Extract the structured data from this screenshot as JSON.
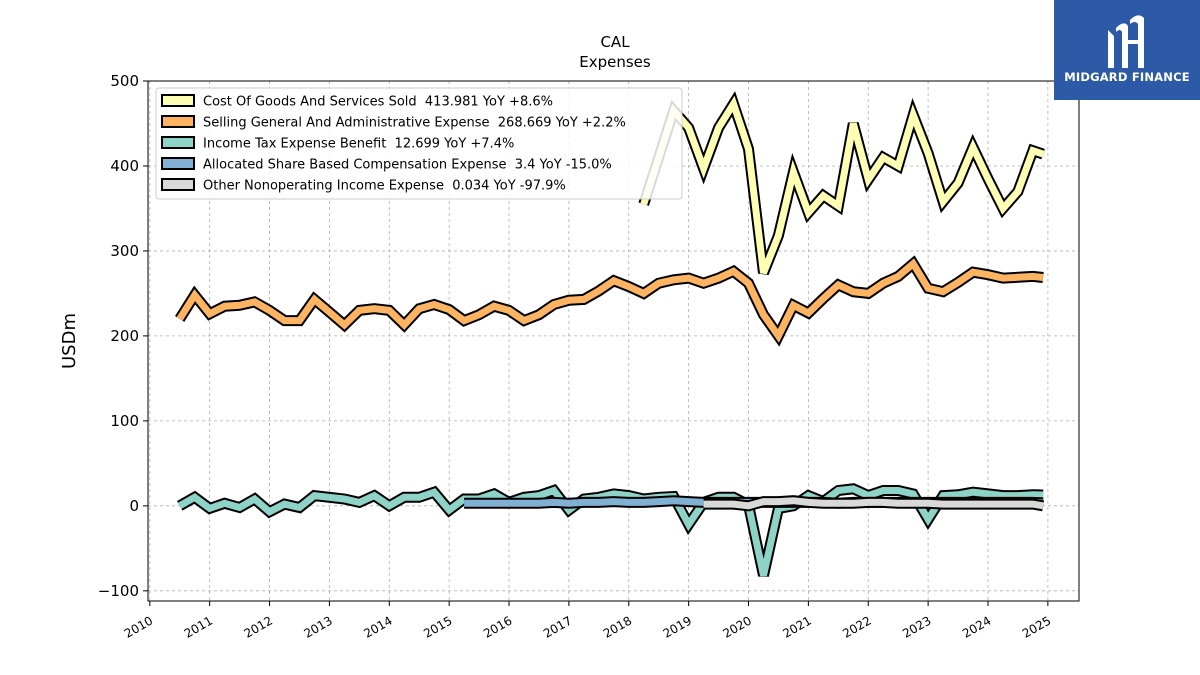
{
  "chart_data": {
    "type": "line",
    "title": "CAL",
    "subtitle": "Expenses",
    "ylabel": "USDm",
    "xlabel": "",
    "ylim": [
      -112,
      500
    ],
    "xlim": [
      2009.97,
      2025.52
    ],
    "yticks": [
      -100,
      0,
      100,
      200,
      300,
      400,
      500
    ],
    "ytick_labels": [
      "−100",
      "0",
      "100",
      "200",
      "300",
      "400",
      "500"
    ],
    "xticks": [
      2010,
      2011,
      2012,
      2013,
      2014,
      2015,
      2016,
      2017,
      2018,
      2019,
      2020,
      2021,
      2022,
      2023,
      2024,
      2025
    ],
    "grid": true,
    "legend_position": "top-left",
    "series": [
      {
        "name": "Cost Of Goods And Services Sold",
        "legend": "Cost Of Goods And Services Sold  413.981 YoY +8.6%",
        "color": "#ffffb3",
        "x": [
          2018.25,
          2018.5,
          2018.75,
          2019.0,
          2019.25,
          2019.5,
          2019.75,
          2020.0,
          2020.25,
          2020.5,
          2020.75,
          2021.0,
          2021.25,
          2021.5,
          2021.75,
          2022.0,
          2022.25,
          2022.5,
          2022.75,
          2023.0,
          2023.25,
          2023.5,
          2023.75,
          2024.0,
          2024.25,
          2024.5,
          2024.75,
          2024.92
        ],
        "values": [
          355,
          410,
          465,
          445,
          397,
          445,
          473,
          420,
          274,
          318,
          393,
          345,
          365,
          353,
          450,
          384,
          410,
          400,
          460,
          415,
          358,
          380,
          422,
          385,
          350,
          370,
          418,
          414
        ]
      },
      {
        "name": "Selling General And Administrative Expense",
        "legend": "Selling General And Administrative Expense  268.669 YoY +2.2%",
        "color": "#fdb462",
        "x": [
          2010.5,
          2010.75,
          2011.0,
          2011.25,
          2011.5,
          2011.75,
          2012.0,
          2012.25,
          2012.5,
          2012.75,
          2013.0,
          2013.25,
          2013.5,
          2013.75,
          2014.0,
          2014.25,
          2014.5,
          2014.75,
          2015.0,
          2015.25,
          2015.5,
          2015.75,
          2016.0,
          2016.25,
          2016.5,
          2016.75,
          2017.0,
          2017.25,
          2017.5,
          2017.75,
          2018.0,
          2018.25,
          2018.5,
          2018.75,
          2019.0,
          2019.25,
          2019.5,
          2019.75,
          2020.0,
          2020.25,
          2020.5,
          2020.75,
          2021.0,
          2021.25,
          2021.5,
          2021.75,
          2022.0,
          2022.25,
          2022.5,
          2022.75,
          2023.0,
          2023.25,
          2023.5,
          2023.75,
          2024.0,
          2024.25,
          2024.5,
          2024.75,
          2024.92
        ],
        "values": [
          220,
          248,
          226,
          235,
          236,
          240,
          230,
          218,
          218,
          243,
          228,
          213,
          230,
          232,
          230,
          213,
          232,
          237,
          231,
          218,
          225,
          235,
          230,
          218,
          225,
          237,
          242,
          243,
          253,
          265,
          258,
          250,
          262,
          266,
          268,
          262,
          268,
          276,
          262,
          225,
          200,
          236,
          227,
          244,
          260,
          252,
          250,
          262,
          270,
          285,
          256,
          252,
          263,
          275,
          272,
          268,
          269,
          270,
          268.7
        ]
      },
      {
        "name": "Income Tax Expense Benefit",
        "legend": "Income Tax Expense Benefit  12.699 YoY +7.4%",
        "color": "#8dd3c7",
        "x": [
          2010.5,
          2010.75,
          2011.0,
          2011.25,
          2011.5,
          2011.75,
          2012.0,
          2012.25,
          2012.5,
          2012.75,
          2013.0,
          2013.25,
          2013.5,
          2013.75,
          2014.0,
          2014.25,
          2014.5,
          2014.75,
          2015.0,
          2015.25,
          2015.5,
          2015.75,
          2016.0,
          2016.25,
          2016.5,
          2016.75,
          2017.0,
          2017.25,
          2017.5,
          2017.75,
          2018.0,
          2018.25,
          2018.5,
          2018.75,
          2019.0,
          2019.25,
          2019.5,
          2019.75,
          2020.0,
          2020.25,
          2020.5,
          2020.75,
          2021.0,
          2021.25,
          2021.5,
          2021.75,
          2022.0,
          2022.25,
          2022.5,
          2022.75,
          2023.0,
          2023.25,
          2023.5,
          2023.75,
          2024.0,
          2024.25,
          2024.5,
          2024.75,
          2024.92
        ],
        "values": [
          0,
          10,
          -3,
          3,
          -2,
          8,
          -7,
          2,
          -2,
          12,
          10,
          8,
          4,
          12,
          0,
          10,
          10,
          16,
          -5,
          8,
          8,
          14,
          4,
          10,
          12,
          18,
          -5,
          8,
          10,
          14,
          12,
          8,
          10,
          11,
          -22,
          4,
          10,
          10,
          1,
          -82,
          -3,
          0,
          12,
          5,
          18,
          20,
          12,
          18,
          18,
          14,
          -16,
          12,
          13,
          16,
          14,
          12,
          12,
          13,
          12.7
        ]
      },
      {
        "name": "Allocated Share Based Compensation Expense",
        "legend": "Allocated Share Based Compensation Expense  3.4 YoY -15.0%",
        "color": "#80b1d3",
        "x": [
          2015.25,
          2015.5,
          2015.75,
          2016.0,
          2016.25,
          2016.5,
          2016.75,
          2017.0,
          2017.25,
          2017.5,
          2017.75,
          2018.0,
          2018.25,
          2018.5,
          2018.75,
          2019.0,
          2019.25,
          2019.5,
          2019.75,
          2020.0,
          2020.25,
          2020.5,
          2020.75,
          2021.0,
          2021.25,
          2021.5,
          2021.75,
          2022.0,
          2022.25,
          2022.5,
          2022.75,
          2023.0,
          2023.25,
          2023.5,
          2023.75,
          2024.0,
          2024.25,
          2024.5,
          2024.75,
          2024.92
        ],
        "values": [
          3,
          3,
          3,
          3,
          3,
          3,
          4,
          3,
          4,
          4,
          5,
          4,
          4,
          5,
          6,
          5,
          4,
          4,
          4,
          4,
          4,
          4,
          4,
          4,
          4,
          3,
          4,
          4,
          4,
          4,
          4,
          4,
          4,
          4,
          4,
          4,
          4,
          4,
          4,
          3.4
        ]
      },
      {
        "name": "Other Nonoperating Income Expense",
        "legend": "Other Nonoperating Income Expense  0.034 YoY -97.9%",
        "color": "#d9d9d9",
        "x": [
          2019.25,
          2019.5,
          2019.75,
          2020.0,
          2020.25,
          2020.5,
          2020.75,
          2021.0,
          2021.25,
          2021.5,
          2021.75,
          2022.0,
          2022.25,
          2022.5,
          2022.75,
          2023.0,
          2023.25,
          2023.5,
          2023.75,
          2024.0,
          2024.25,
          2024.5,
          2024.75,
          2024.92
        ],
        "values": [
          2,
          2,
          2,
          0,
          5,
          5,
          6,
          4,
          3,
          3,
          3,
          4,
          4,
          3,
          3,
          3,
          2,
          2,
          2,
          2,
          2,
          2,
          2,
          0.034
        ]
      }
    ]
  },
  "logo": {
    "text": "MIDGARD FINANCE",
    "background": "#2d5aa6"
  }
}
